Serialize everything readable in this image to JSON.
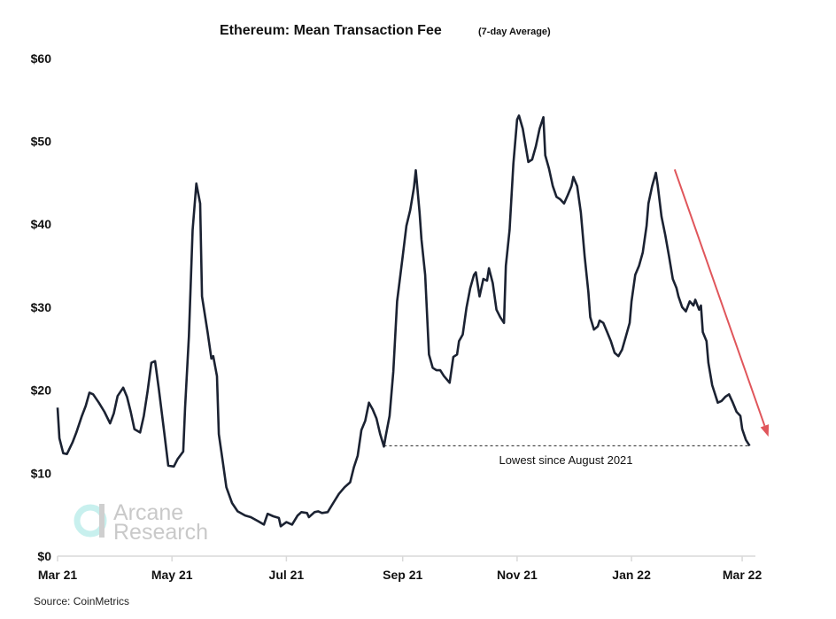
{
  "chart_data": {
    "type": "line",
    "title": "Ethereum: Mean Transaction Fee",
    "subtitle": "(7-day Average)",
    "xlabel": "",
    "ylabel": "",
    "ylim": [
      0,
      60
    ],
    "xlim": [
      "2021-03-01",
      "2022-03-10"
    ],
    "grid": false,
    "y_ticks": [
      "$0",
      "$10",
      "$20",
      "$30",
      "$40",
      "$50",
      "$60"
    ],
    "y_tick_values": [
      0,
      10,
      20,
      30,
      40,
      50,
      60
    ],
    "x_ticks": [
      "Mar 21",
      "May 21",
      "Jul 21",
      "Sep 21",
      "Nov 21",
      "Jan 22",
      "Mar 22"
    ],
    "x_tick_dates": [
      "2021-03-01",
      "2021-05-01",
      "2021-07-01",
      "2021-09-01",
      "2021-11-01",
      "2022-01-01",
      "2022-03-01"
    ],
    "line_color": "#1b2232",
    "series": [
      {
        "x": [
          "2021-03-01",
          "2021-03-02",
          "2021-03-04",
          "2021-03-06",
          "2021-03-09",
          "2021-03-11",
          "2021-03-14",
          "2021-03-16",
          "2021-03-18",
          "2021-03-20",
          "2021-03-23",
          "2021-03-26",
          "2021-03-29",
          "2021-03-31",
          "2021-04-02",
          "2021-04-05",
          "2021-04-07",
          "2021-04-09",
          "2021-04-11",
          "2021-04-14",
          "2021-04-16",
          "2021-04-18",
          "2021-04-20",
          "2021-04-22",
          "2021-04-24",
          "2021-04-27",
          "2021-04-29",
          "2021-05-02",
          "2021-05-04",
          "2021-05-07",
          "2021-05-08",
          "2021-05-10",
          "2021-05-12",
          "2021-05-14",
          "2021-05-16",
          "2021-05-17",
          "2021-05-20",
          "2021-05-22",
          "2021-05-23",
          "2021-05-25",
          "2021-05-26",
          "2021-05-28",
          "2021-05-30",
          "2021-06-02",
          "2021-06-05",
          "2021-06-09",
          "2021-06-12",
          "2021-06-16",
          "2021-06-19",
          "2021-06-21",
          "2021-06-24",
          "2021-06-27",
          "2021-06-28",
          "2021-07-01",
          "2021-07-04",
          "2021-07-07",
          "2021-07-09",
          "2021-07-12",
          "2021-07-13",
          "2021-07-16",
          "2021-07-18",
          "2021-07-20",
          "2021-07-23",
          "2021-07-26",
          "2021-07-29",
          "2021-08-01",
          "2021-08-04",
          "2021-08-06",
          "2021-08-08",
          "2021-08-10",
          "2021-08-12",
          "2021-08-14",
          "2021-08-16",
          "2021-08-18",
          "2021-08-20",
          "2021-08-22",
          "2021-08-23",
          "2021-08-25",
          "2021-08-27",
          "2021-08-29",
          "2021-09-01",
          "2021-09-03",
          "2021-09-05",
          "2021-09-07",
          "2021-09-08",
          "2021-09-10",
          "2021-09-11",
          "2021-09-13",
          "2021-09-15",
          "2021-09-17",
          "2021-09-19",
          "2021-09-21",
          "2021-09-23",
          "2021-09-26",
          "2021-09-28",
          "2021-09-30",
          "2021-10-01",
          "2021-10-03",
          "2021-10-05",
          "2021-10-07",
          "2021-10-09",
          "2021-10-10",
          "2021-10-12",
          "2021-10-14",
          "2021-10-16",
          "2021-10-17",
          "2021-10-19",
          "2021-10-21",
          "2021-10-23",
          "2021-10-25",
          "2021-10-26",
          "2021-10-28",
          "2021-10-30",
          "2021-11-01",
          "2021-11-02",
          "2021-11-04",
          "2021-11-07",
          "2021-11-09",
          "2021-11-11",
          "2021-11-13",
          "2021-11-15",
          "2021-11-16",
          "2021-11-18",
          "2021-11-20",
          "2021-11-22",
          "2021-11-24",
          "2021-11-26",
          "2021-11-28",
          "2021-11-30",
          "2021-12-01",
          "2021-12-03",
          "2021-12-05",
          "2021-12-07",
          "2021-12-09",
          "2021-12-10",
          "2021-12-12",
          "2021-12-14",
          "2021-12-15",
          "2021-12-17",
          "2021-12-19",
          "2021-12-21",
          "2021-12-23",
          "2021-12-25",
          "2021-12-27",
          "2021-12-29",
          "2021-12-31",
          "2022-01-01",
          "2022-01-03",
          "2022-01-05",
          "2022-01-07",
          "2022-01-09",
          "2022-01-10",
          "2022-01-12",
          "2022-01-14",
          "2022-01-15",
          "2022-01-17",
          "2022-01-19",
          "2022-01-21",
          "2022-01-23",
          "2022-01-25",
          "2022-01-26",
          "2022-01-28",
          "2022-01-30",
          "2022-02-01",
          "2022-02-03",
          "2022-02-04",
          "2022-02-06",
          "2022-02-07",
          "2022-02-08",
          "2022-02-10",
          "2022-02-11",
          "2022-02-13",
          "2022-02-14",
          "2022-02-16",
          "2022-02-18",
          "2022-02-20",
          "2022-02-22",
          "2022-02-24",
          "2022-02-26",
          "2022-02-28",
          "2022-03-01",
          "2022-03-03",
          "2022-03-05"
        ],
        "y": [
          17.9,
          14.2,
          12.4,
          12.3,
          13.7,
          14.9,
          16.9,
          18.1,
          19.7,
          19.5,
          18.5,
          17.4,
          16.0,
          17.2,
          19.3,
          20.3,
          19.2,
          17.4,
          15.3,
          14.9,
          16.9,
          19.9,
          23.3,
          23.5,
          20.1,
          14.7,
          10.9,
          10.8,
          11.7,
          12.6,
          17.9,
          26.5,
          39.3,
          44.9,
          42.5,
          31.3,
          27.0,
          23.8,
          24.1,
          21.7,
          14.7,
          11.5,
          8.3,
          6.4,
          5.4,
          4.9,
          4.7,
          4.2,
          3.8,
          5.1,
          4.8,
          4.6,
          3.6,
          4.1,
          3.8,
          4.9,
          5.3,
          5.2,
          4.7,
          5.3,
          5.4,
          5.2,
          5.3,
          6.4,
          7.5,
          8.3,
          8.9,
          10.7,
          12.1,
          15.2,
          16.3,
          18.5,
          17.7,
          16.6,
          14.7,
          13.2,
          14.5,
          16.9,
          22.2,
          30.7,
          36.1,
          39.8,
          41.7,
          44.4,
          46.5,
          41.4,
          38.2,
          33.9,
          24.3,
          22.7,
          22.4,
          22.4,
          21.7,
          20.9,
          24.0,
          24.3,
          25.9,
          26.7,
          29.9,
          32.3,
          33.9,
          34.2,
          31.3,
          33.4,
          33.2,
          34.7,
          32.9,
          29.7,
          28.8,
          28.1,
          35.0,
          39.3,
          47.3,
          52.6,
          53.1,
          51.5,
          47.5,
          47.8,
          49.4,
          51.5,
          52.9,
          48.3,
          46.7,
          44.6,
          43.3,
          43.0,
          42.5,
          43.5,
          44.6,
          45.7,
          44.6,
          41.4,
          36.1,
          31.8,
          28.8,
          27.3,
          27.7,
          28.4,
          28.1,
          27.0,
          25.9,
          24.5,
          24.1,
          24.9,
          26.5,
          28.1,
          30.7,
          33.9,
          35.0,
          36.6,
          39.8,
          42.5,
          44.6,
          46.2,
          44.6,
          40.9,
          38.7,
          36.1,
          33.4,
          32.3,
          31.3,
          30.0,
          29.5,
          30.7,
          30.2,
          30.9,
          29.7,
          30.2,
          27.0,
          25.9,
          23.3,
          20.6,
          19.9,
          18.5,
          18.7,
          19.2,
          19.5,
          18.5,
          17.4,
          16.9,
          15.3,
          14.0,
          13.3
        ]
      }
    ],
    "annotations": {
      "reference_line": {
        "label": "Lowest since August 2021",
        "value": 13.3,
        "from": "2021-08-22",
        "to": "2022-03-05"
      },
      "trend_arrow": {
        "from": [
          "2022-01-24",
          46.6
        ],
        "to": [
          "2022-03-15",
          14.4
        ],
        "color": "#e0565b"
      }
    },
    "source": "Source: CoinMetrics",
    "watermark": "Arcane Research",
    "watermark_colors": {
      "ring": "#c8f0ee",
      "text": "#c9c9c9"
    }
  }
}
